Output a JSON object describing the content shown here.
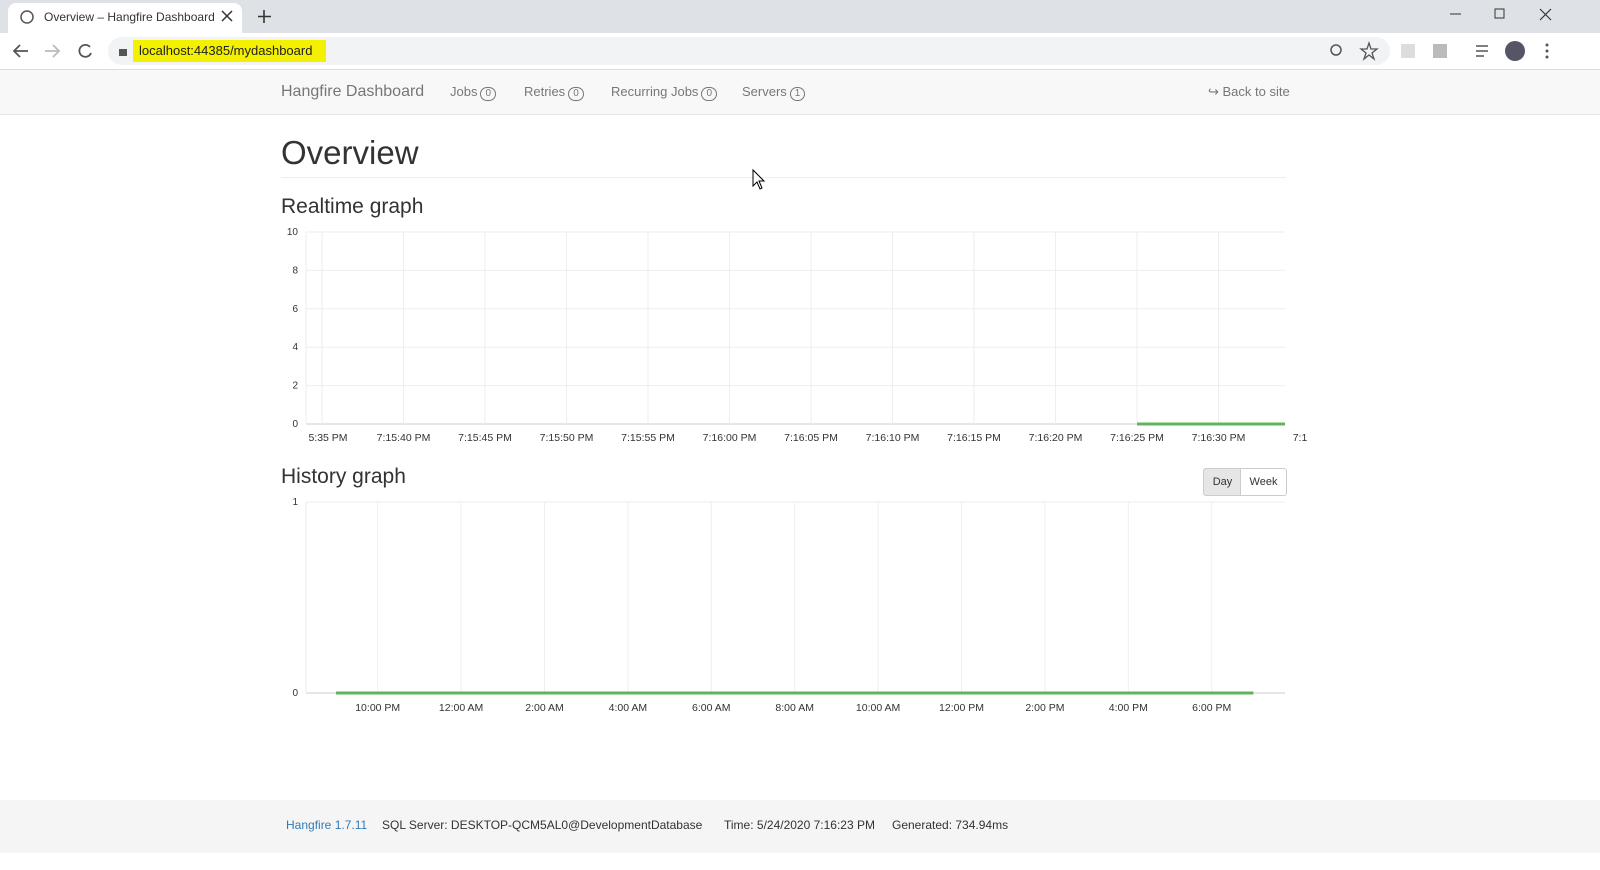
{
  "browser": {
    "tab_title": "Overview – Hangfire Dashboard",
    "url": "localhost:44385/mydashboard"
  },
  "nav": {
    "brand": "Hangfire Dashboard",
    "items": [
      {
        "label": "Jobs",
        "count": 0
      },
      {
        "label": "Retries",
        "count": 0
      },
      {
        "label": "Recurring Jobs",
        "count": 0
      },
      {
        "label": "Servers",
        "count": 1
      }
    ],
    "back_link": "Back to site"
  },
  "page_title": "Overview",
  "realtime": {
    "type": "line",
    "title": "Realtime graph",
    "categories": [
      "5:35 PM",
      "7:15:40 PM",
      "7:15:45 PM",
      "7:15:50 PM",
      "7:15:55 PM",
      "7:16:00 PM",
      "7:16:05 PM",
      "7:16:10 PM",
      "7:16:15 PM",
      "7:16:20 PM",
      "7:16:25 PM",
      "7:16:30 PM",
      "7:1"
    ],
    "series": [
      {
        "color": "#62b35f",
        "values": [
          null,
          null,
          null,
          null,
          null,
          null,
          null,
          null,
          null,
          null,
          0,
          0,
          0
        ]
      }
    ],
    "ylim": [
      0,
      10
    ],
    "yticks": [
      0,
      2,
      4,
      6,
      8,
      10
    ],
    "grid": true
  },
  "history": {
    "type": "line",
    "title": "History graph",
    "buttons": [
      "Day",
      "Week"
    ],
    "categories": [
      null,
      "10:00 PM",
      null,
      "12:00 AM",
      null,
      "2:00 AM",
      null,
      "4:00 AM",
      null,
      "6:00 AM",
      null,
      "8:00 AM",
      null,
      "10:00 AM",
      null,
      "12:00 PM",
      null,
      "2:00 PM",
      null,
      "4:00 PM",
      null,
      "6:00 PM",
      null
    ],
    "series": [
      {
        "color": "#62b35f",
        "values": [
          0,
          0,
          0,
          0,
          0,
          0,
          0,
          0,
          0,
          0,
          0,
          0,
          0,
          0,
          0,
          0,
          0,
          0,
          0,
          0,
          0,
          0,
          0
        ]
      }
    ],
    "ylim": [
      0,
      1
    ],
    "yticks": [
      0,
      1
    ],
    "grid": true
  },
  "footer": {
    "version": "Hangfire 1.7.11",
    "sql_server": "SQL Server: DESKTOP-QCM5AL0@DevelopmentDatabase",
    "time": "Time: 5/24/2020 7:16:23 PM",
    "generated": "Generated: 734.94ms"
  }
}
